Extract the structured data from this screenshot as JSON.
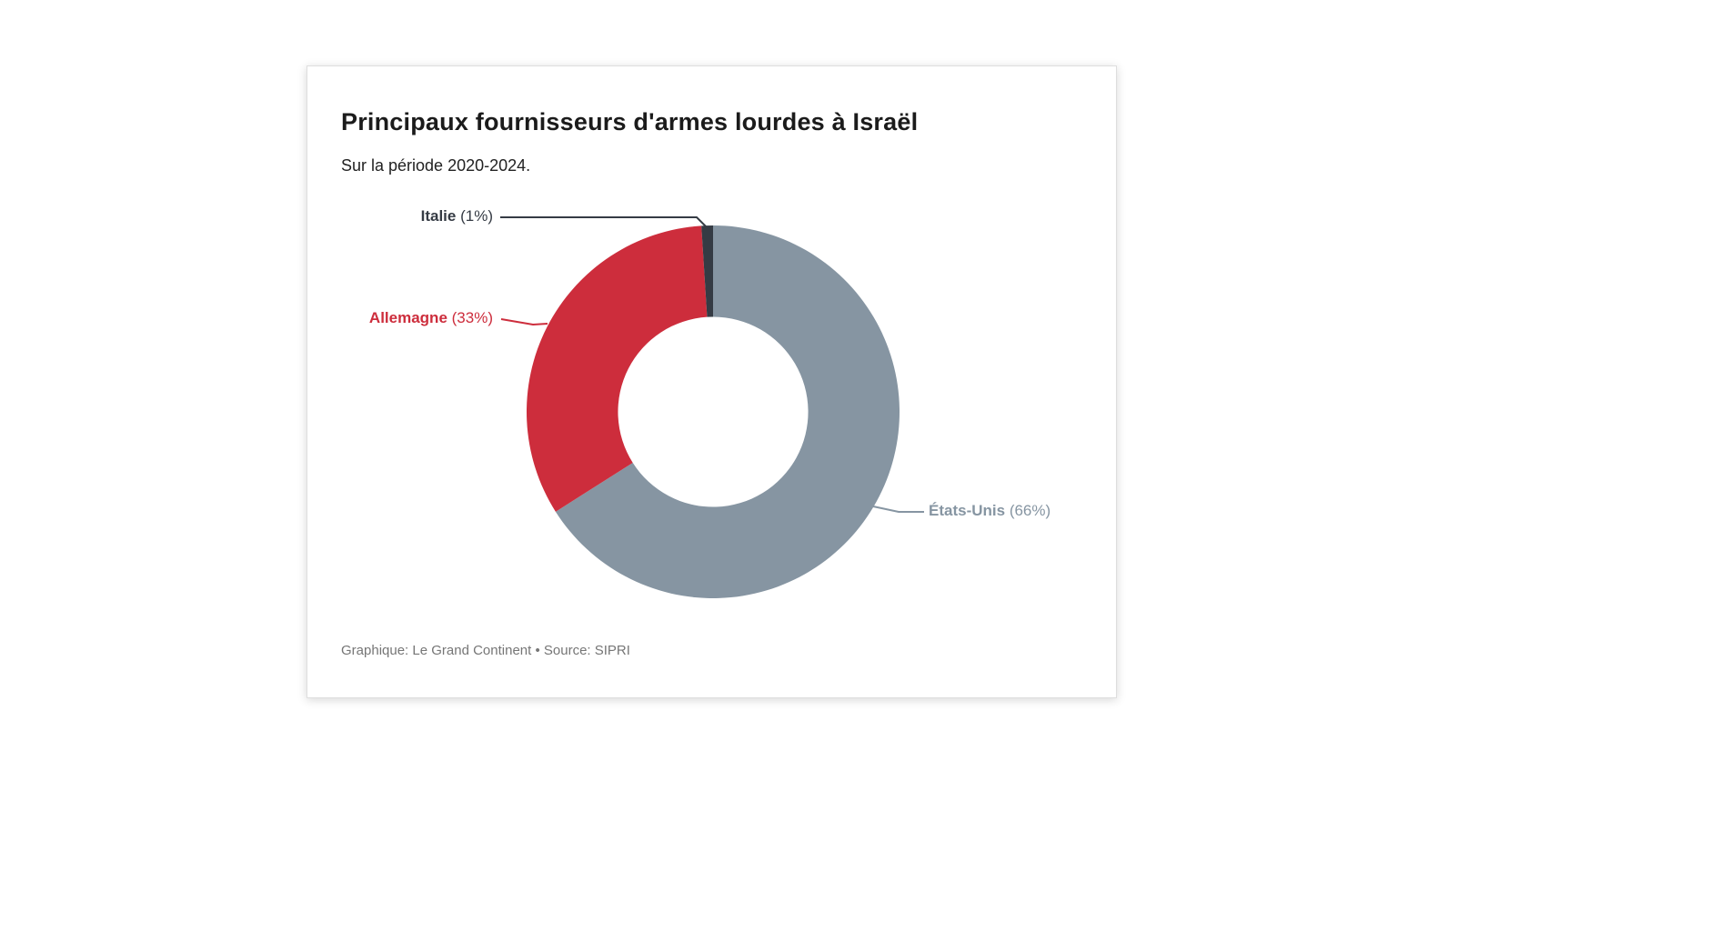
{
  "card": {
    "title": "Principaux fournisseurs d'armes lourdes à Israël",
    "subtitle": "Sur la période 2020-2024.",
    "source": "Graphique: Le Grand Continent • Source: SIPRI"
  },
  "chart_data": {
    "type": "pie",
    "donut": true,
    "title": "Principaux fournisseurs d'armes lourdes à Israël",
    "subtitle": "Sur la période 2020-2024.",
    "source": "Graphique: Le Grand Continent • Source: SIPRI",
    "period": "2020-2024",
    "unit": "%",
    "direction": "clockwise",
    "start_angle_deg": 0,
    "inner_radius_ratio": 0.51,
    "slices": [
      {
        "name": "États-Unis",
        "value": 66,
        "color": "#8695a2",
        "label_name": "États-Unis",
        "label_pct": "(66%)"
      },
      {
        "name": "Allemagne",
        "value": 33,
        "color": "#cd2d3c",
        "label_name": "Allemagne",
        "label_pct": "(33%)"
      },
      {
        "name": "Italie",
        "value": 1,
        "color": "#353b44",
        "label_name": "Italie",
        "label_pct": "(1%)"
      }
    ]
  }
}
